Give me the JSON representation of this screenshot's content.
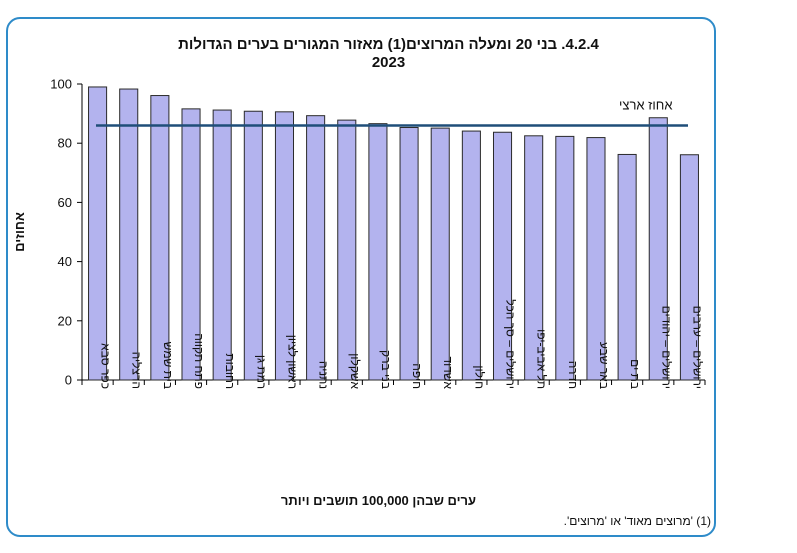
{
  "titles": {
    "line1": "4.2.4. בני 20 ומעלה המרוצים(1) מאזור המגורים בערים הגדולות",
    "line2": "2023"
  },
  "footnote": "(1) 'מרוצים מאוד' או 'מרוצים'.",
  "colors": {
    "bar_fill": "#b3b3ee",
    "bar_stroke": "#2a2a2a",
    "reference_line": "#1f4e79",
    "frame": "#2e8bc9"
  },
  "chart_data": {
    "type": "bar",
    "title": "4.2.4. בני 20 ומעלה המרוצים(1) מאזור המגורים בערים הגדולות 2023",
    "xlabel": "ערים שבהן 100,000 תושבים ויותר",
    "ylabel": "אחוזים",
    "ylim": [
      0,
      100
    ],
    "yticks": [
      0,
      20,
      40,
      60,
      80,
      100
    ],
    "categories": [
      "כפר סבא",
      "הרצליה",
      "בית שמש",
      "פתח תקווה",
      "רחובות",
      "רמת גן",
      "ראשון לציון",
      "נתניה",
      "אשקלון",
      "בני ברק",
      "חיפה",
      "אשדוד",
      "חולון",
      "ירושלים – סך הכל",
      "תל אביב-יפו",
      "חדרה",
      "באר שבע",
      "בת ים",
      "ירושלים – יהודים",
      "ירושלים – ערבים"
    ],
    "values": [
      99,
      98.3,
      96.1,
      91.6,
      91.2,
      90.8,
      90.6,
      89.3,
      87.8,
      86.6,
      85.3,
      85.1,
      84.1,
      83.7,
      82.5,
      82.3,
      81.9,
      76.2,
      88.6,
      76.1
    ],
    "reference_line": {
      "label": "אחוז ארצי",
      "value": 86
    }
  }
}
